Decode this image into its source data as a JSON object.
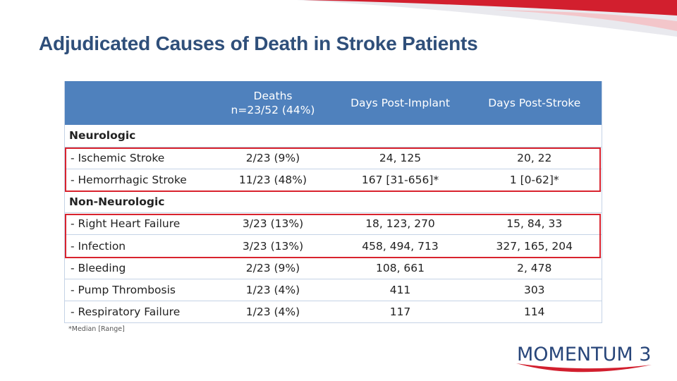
{
  "slide": {
    "title": "Adjudicated Causes of Death in Stroke Patients",
    "footnote": "*Median [Range]",
    "logo_text": "MOMENTUM 3",
    "colors": {
      "title": "#2f4f7a",
      "header_bg": "#4f81bd",
      "highlight": "#d9232e",
      "swoosh": "#d21f2e"
    }
  },
  "table": {
    "headers": {
      "col0": "",
      "col1_line1": "Deaths",
      "col1_line2": "n=23/52 (44%)",
      "col2": "Days Post-Implant",
      "col3": "Days Post-Stroke"
    },
    "sections": {
      "neurologic": "Neurologic",
      "non_neurologic": "Non-Neurologic"
    },
    "rows": {
      "ischemic": {
        "cause": "- Ischemic Stroke",
        "deaths": "2/23 (9%)",
        "post_implant": "24, 125",
        "post_stroke": "20, 22"
      },
      "hemorrhagic": {
        "cause": "- Hemorrhagic Stroke",
        "deaths": "11/23 (48%)",
        "post_implant": "167 [31-656]*",
        "post_stroke": "1 [0-62]*"
      },
      "right_heart": {
        "cause": "- Right Heart Failure",
        "deaths": "3/23 (13%)",
        "post_implant": "18, 123, 270",
        "post_stroke": "15, 84, 33"
      },
      "infection": {
        "cause": "- Infection",
        "deaths": "3/23 (13%)",
        "post_implant": "458, 494, 713",
        "post_stroke": "327, 165, 204"
      },
      "bleeding": {
        "cause": "- Bleeding",
        "deaths": "2/23 (9%)",
        "post_implant": "108, 661",
        "post_stroke": "2, 478"
      },
      "pump_thrombosis": {
        "cause": "- Pump Thrombosis",
        "deaths": "1/23 (4%)",
        "post_implant": "411",
        "post_stroke": "303"
      },
      "respiratory": {
        "cause": "- Respiratory Failure",
        "deaths": "1/23 (4%)",
        "post_implant": "117",
        "post_stroke": "114"
      }
    }
  }
}
